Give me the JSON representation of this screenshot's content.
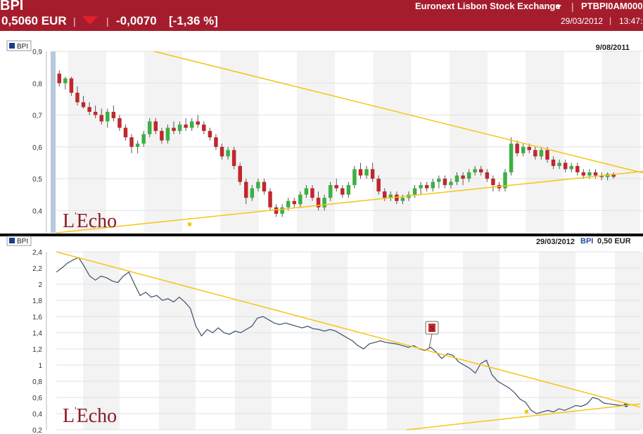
{
  "header": {
    "ticker": "BPI",
    "price": "0,5060 EUR",
    "change": "-0,0070",
    "change_pct": "[-1,36 %]",
    "exchange": "Euronext Lisbon Stock Exchange",
    "isin": "PTBPI0AM000",
    "date": "29/03/2012",
    "time": "13:47:",
    "separator": "|",
    "colors": {
      "bar": "#a51d2d",
      "down_arrow": "#e0202a"
    }
  },
  "top_panel": {
    "legend": "BPI",
    "date_label": "9/08/2011",
    "logo": "L'Echo"
  },
  "bottom_panel": {
    "legend": "BPI",
    "date_label": "29/03/2012",
    "series_label": "BPI",
    "price_label": "0,50 EUR",
    "marker_label": "S",
    "logo": "L'Echo"
  },
  "chart_data": [
    {
      "type": "candlestick",
      "title": "",
      "series": [
        {
          "name": "BPI"
        }
      ],
      "yticks": [
        "0,9",
        "0,8",
        "0,7",
        "0,6",
        "0,5",
        "0,4"
      ],
      "ylim": [
        0.33,
        0.9
      ],
      "grid": true,
      "legend": "top-left",
      "colors": {
        "up": "#3cb043",
        "down": "#c1272d",
        "trendline": "#f5c518"
      },
      "candles": [
        [
          0.83,
          0.84,
          0.79,
          0.8
        ],
        [
          0.8,
          0.82,
          0.78,
          0.815
        ],
        [
          0.815,
          0.82,
          0.76,
          0.77
        ],
        [
          0.77,
          0.79,
          0.73,
          0.74
        ],
        [
          0.74,
          0.76,
          0.72,
          0.725
        ],
        [
          0.725,
          0.74,
          0.7,
          0.71
        ],
        [
          0.71,
          0.73,
          0.69,
          0.7
        ],
        [
          0.7,
          0.72,
          0.67,
          0.68
        ],
        [
          0.68,
          0.72,
          0.66,
          0.71
        ],
        [
          0.71,
          0.73,
          0.68,
          0.69
        ],
        [
          0.69,
          0.7,
          0.65,
          0.66
        ],
        [
          0.66,
          0.67,
          0.62,
          0.63
        ],
        [
          0.63,
          0.64,
          0.58,
          0.6
        ],
        [
          0.6,
          0.62,
          0.58,
          0.61
        ],
        [
          0.61,
          0.65,
          0.6,
          0.64
        ],
        [
          0.64,
          0.69,
          0.63,
          0.68
        ],
        [
          0.68,
          0.69,
          0.64,
          0.65
        ],
        [
          0.65,
          0.66,
          0.61,
          0.62
        ],
        [
          0.62,
          0.67,
          0.61,
          0.66
        ],
        [
          0.66,
          0.68,
          0.64,
          0.65
        ],
        [
          0.65,
          0.68,
          0.64,
          0.67
        ],
        [
          0.67,
          0.69,
          0.65,
          0.66
        ],
        [
          0.66,
          0.69,
          0.65,
          0.68
        ],
        [
          0.68,
          0.7,
          0.66,
          0.67
        ],
        [
          0.67,
          0.68,
          0.64,
          0.65
        ],
        [
          0.65,
          0.66,
          0.62,
          0.63
        ],
        [
          0.63,
          0.64,
          0.59,
          0.6
        ],
        [
          0.6,
          0.61,
          0.56,
          0.57
        ],
        [
          0.57,
          0.6,
          0.56,
          0.59
        ],
        [
          0.59,
          0.6,
          0.53,
          0.54
        ],
        [
          0.54,
          0.55,
          0.48,
          0.49
        ],
        [
          0.49,
          0.5,
          0.42,
          0.44
        ],
        [
          0.44,
          0.48,
          0.43,
          0.47
        ],
        [
          0.47,
          0.5,
          0.46,
          0.49
        ],
        [
          0.49,
          0.5,
          0.45,
          0.46
        ],
        [
          0.46,
          0.47,
          0.4,
          0.41
        ],
        [
          0.41,
          0.42,
          0.38,
          0.39
        ],
        [
          0.39,
          0.42,
          0.38,
          0.41
        ],
        [
          0.41,
          0.44,
          0.4,
          0.43
        ],
        [
          0.43,
          0.44,
          0.41,
          0.42
        ],
        [
          0.42,
          0.46,
          0.41,
          0.45
        ],
        [
          0.45,
          0.48,
          0.44,
          0.47
        ],
        [
          0.47,
          0.48,
          0.43,
          0.44
        ],
        [
          0.44,
          0.46,
          0.4,
          0.41
        ],
        [
          0.41,
          0.45,
          0.4,
          0.44
        ],
        [
          0.44,
          0.49,
          0.43,
          0.48
        ],
        [
          0.48,
          0.5,
          0.46,
          0.47
        ],
        [
          0.47,
          0.48,
          0.44,
          0.45
        ],
        [
          0.45,
          0.49,
          0.44,
          0.48
        ],
        [
          0.48,
          0.54,
          0.47,
          0.53
        ],
        [
          0.53,
          0.55,
          0.5,
          0.51
        ],
        [
          0.51,
          0.54,
          0.5,
          0.53
        ],
        [
          0.53,
          0.55,
          0.49,
          0.5
        ],
        [
          0.5,
          0.51,
          0.45,
          0.46
        ],
        [
          0.46,
          0.47,
          0.43,
          0.44
        ],
        [
          0.44,
          0.46,
          0.43,
          0.45
        ],
        [
          0.45,
          0.46,
          0.42,
          0.43
        ],
        [
          0.43,
          0.45,
          0.42,
          0.44
        ],
        [
          0.44,
          0.46,
          0.43,
          0.45
        ],
        [
          0.45,
          0.48,
          0.44,
          0.47
        ],
        [
          0.47,
          0.49,
          0.45,
          0.48
        ],
        [
          0.48,
          0.49,
          0.46,
          0.47
        ],
        [
          0.47,
          0.5,
          0.46,
          0.49
        ],
        [
          0.49,
          0.51,
          0.47,
          0.5
        ],
        [
          0.5,
          0.51,
          0.47,
          0.48
        ],
        [
          0.48,
          0.5,
          0.47,
          0.49
        ],
        [
          0.49,
          0.52,
          0.48,
          0.51
        ],
        [
          0.51,
          0.52,
          0.48,
          0.5
        ],
        [
          0.5,
          0.53,
          0.49,
          0.52
        ],
        [
          0.52,
          0.54,
          0.51,
          0.53
        ],
        [
          0.53,
          0.54,
          0.51,
          0.52
        ],
        [
          0.52,
          0.53,
          0.49,
          0.5
        ],
        [
          0.5,
          0.51,
          0.46,
          0.48
        ],
        [
          0.48,
          0.49,
          0.46,
          0.47
        ],
        [
          0.47,
          0.53,
          0.46,
          0.52
        ],
        [
          0.52,
          0.63,
          0.51,
          0.61
        ],
        [
          0.61,
          0.62,
          0.57,
          0.58
        ],
        [
          0.58,
          0.61,
          0.57,
          0.6
        ],
        [
          0.6,
          0.61,
          0.58,
          0.59
        ],
        [
          0.59,
          0.6,
          0.56,
          0.57
        ],
        [
          0.57,
          0.6,
          0.56,
          0.59
        ],
        [
          0.59,
          0.6,
          0.55,
          0.56
        ],
        [
          0.56,
          0.57,
          0.53,
          0.54
        ],
        [
          0.54,
          0.56,
          0.53,
          0.55
        ],
        [
          0.55,
          0.56,
          0.52,
          0.53
        ],
        [
          0.53,
          0.55,
          0.52,
          0.54
        ],
        [
          0.54,
          0.55,
          0.51,
          0.52
        ],
        [
          0.52,
          0.53,
          0.5,
          0.51
        ],
        [
          0.51,
          0.53,
          0.5,
          0.52
        ],
        [
          0.52,
          0.53,
          0.5,
          0.51
        ],
        [
          0.51,
          0.52,
          0.495,
          0.505
        ],
        [
          0.505,
          0.52,
          0.495,
          0.515
        ],
        [
          0.515,
          0.52,
          0.5,
          0.506
        ]
      ],
      "trendlines": [
        {
          "from": [
            0.315,
            0.33
          ],
          "to": [
            1.0,
            0.523
          ]
        },
        {
          "from": [
            0.179,
            0.9
          ],
          "to": [
            1.0,
            0.518
          ]
        }
      ]
    },
    {
      "type": "line",
      "title": "",
      "series": [
        {
          "name": "BPI",
          "values": [
            2.15,
            2.2,
            2.26,
            2.3,
            2.33,
            2.22,
            2.1,
            2.05,
            2.1,
            2.08,
            2.04,
            2.02,
            2.1,
            2.15,
            2.0,
            1.86,
            1.9,
            1.84,
            1.86,
            1.8,
            1.82,
            1.78,
            1.84,
            1.78,
            1.7,
            1.48,
            1.36,
            1.44,
            1.4,
            1.46,
            1.4,
            1.38,
            1.42,
            1.4,
            1.44,
            1.48,
            1.58,
            1.6,
            1.56,
            1.52,
            1.5,
            1.52,
            1.5,
            1.48,
            1.46,
            1.48,
            1.45,
            1.44,
            1.42,
            1.44,
            1.42,
            1.38,
            1.34,
            1.3,
            1.24,
            1.2,
            1.26,
            1.28,
            1.3,
            1.28,
            1.27,
            1.26,
            1.24,
            1.22,
            1.24,
            1.2,
            1.18,
            1.22,
            1.16,
            1.08,
            1.14,
            1.12,
            1.04,
            1.0,
            0.96,
            0.9,
            1.02,
            1.06,
            0.88,
            0.8,
            0.76,
            0.72,
            0.66,
            0.58,
            0.54,
            0.44,
            0.4,
            0.42,
            0.44,
            0.42,
            0.46,
            0.44,
            0.47,
            0.5,
            0.49,
            0.52,
            0.6,
            0.58,
            0.53,
            0.52,
            0.51,
            0.5,
            0.506
          ]
        }
      ],
      "yticks": [
        "2,4",
        "2,2",
        "2",
        "1,8",
        "1,6",
        "1,4",
        "1,2",
        "1",
        "0,8",
        "0,6",
        "0,4",
        "0,2"
      ],
      "ylim": [
        0.2,
        2.4
      ],
      "grid": true,
      "legend": "top-left",
      "colors": {
        "line": "#3a4f6b",
        "trendline": "#f5c518",
        "marker": "#c0392b"
      },
      "trendlines": [
        {
          "from": [
            0.0,
            2.4
          ],
          "to": [
            1.0,
            0.48
          ]
        },
        {
          "from": [
            0.6,
            0.2
          ],
          "to": [
            1.0,
            0.52
          ]
        }
      ]
    }
  ]
}
